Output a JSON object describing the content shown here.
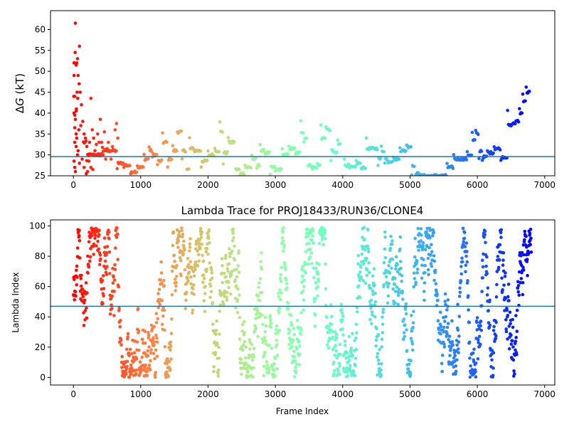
{
  "chart_data": [
    {
      "type": "scatter",
      "title": "",
      "xlabel": "",
      "ylabel": "ΔG (kT)",
      "ylabel_prefix": "Δ",
      "ylabel_var": "G",
      "ylabel_unit": " (kT)",
      "xlim": [
        -340,
        7150
      ],
      "ylim": [
        25,
        64.5
      ],
      "xticks": [
        0,
        1000,
        2000,
        3000,
        4000,
        5000,
        6000,
        7000
      ],
      "yticks": [
        25,
        30,
        35,
        40,
        45,
        50,
        55,
        60
      ],
      "hline": 29.6,
      "hline_color": "#1f77b4",
      "colormap": "rainbow",
      "trace_points": [
        [
          150,
          33
        ],
        [
          250,
          30
        ],
        [
          350,
          30
        ],
        [
          500,
          31
        ],
        [
          600,
          31
        ],
        [
          700,
          28
        ],
        [
          800,
          27.5
        ],
        [
          900,
          26
        ],
        [
          1000,
          27
        ],
        [
          1100,
          29
        ],
        [
          1150,
          31
        ],
        [
          1200,
          30
        ],
        [
          1300,
          28.5
        ],
        [
          1350,
          33
        ],
        [
          1450,
          29
        ],
        [
          1500,
          31
        ],
        [
          1580,
          35.5
        ],
        [
          1650,
          31
        ],
        [
          1700,
          26.5
        ],
        [
          1750,
          31.5
        ],
        [
          1850,
          31
        ],
        [
          1950,
          28.5
        ],
        [
          2050,
          30
        ],
        [
          2150,
          31
        ],
        [
          2200,
          35.5
        ],
        [
          2250,
          30.5
        ],
        [
          2350,
          33
        ],
        [
          2450,
          26.5
        ],
        [
          2500,
          25.5
        ],
        [
          2600,
          27
        ],
        [
          2700,
          29
        ],
        [
          2750,
          27.5
        ],
        [
          2800,
          31
        ],
        [
          2900,
          30.5
        ],
        [
          2950,
          27
        ],
        [
          3050,
          26.5
        ],
        [
          3150,
          30
        ],
        [
          3250,
          31.5
        ],
        [
          3350,
          30.5
        ],
        [
          3400,
          35.5
        ],
        [
          3450,
          34
        ],
        [
          3500,
          27.5
        ],
        [
          3600,
          27
        ],
        [
          3650,
          27.5
        ],
        [
          3700,
          34
        ],
        [
          3800,
          36
        ],
        [
          3850,
          31
        ],
        [
          3900,
          30.5
        ],
        [
          3950,
          32.5
        ],
        [
          4000,
          25
        ],
        [
          4050,
          27.5
        ],
        [
          4150,
          27
        ],
        [
          4250,
          28
        ],
        [
          4300,
          27
        ],
        [
          4400,
          31.5
        ],
        [
          4500,
          31.5
        ],
        [
          4550,
          29
        ],
        [
          4600,
          31
        ],
        [
          4650,
          29
        ],
        [
          4700,
          28.5
        ],
        [
          4800,
          29
        ],
        [
          4900,
          31
        ],
        [
          5000,
          32
        ],
        [
          5050,
          27.5
        ],
        [
          5100,
          25.5
        ],
        [
          5200,
          25
        ],
        [
          5300,
          25
        ],
        [
          5400,
          25
        ],
        [
          5500,
          25
        ],
        [
          5600,
          27
        ],
        [
          5700,
          29
        ],
        [
          5800,
          29
        ],
        [
          5900,
          30
        ],
        [
          5950,
          33.5
        ],
        [
          6000,
          35
        ],
        [
          6050,
          31
        ],
        [
          6100,
          29.5
        ],
        [
          6200,
          30.5
        ],
        [
          6300,
          31.5
        ],
        [
          6400,
          29.5
        ],
        [
          6500,
          37
        ],
        [
          6550,
          37.5
        ],
        [
          6600,
          38
        ],
        [
          6650,
          40
        ],
        [
          6700,
          43
        ],
        [
          6750,
          45
        ],
        [
          6780,
          45
        ]
      ],
      "early_points": [
        [
          30,
          61.5
        ],
        [
          25,
          54.5
        ],
        [
          15,
          52
        ],
        [
          10,
          52
        ],
        [
          50,
          52
        ],
        [
          60,
          53
        ],
        [
          40,
          51.5
        ],
        [
          10,
          49
        ],
        [
          20,
          44
        ],
        [
          5,
          44
        ],
        [
          40,
          40.5
        ],
        [
          10,
          40
        ],
        [
          20,
          39.5
        ],
        [
          45,
          41
        ],
        [
          55,
          45
        ],
        [
          65,
          43.5
        ],
        [
          70,
          49
        ],
        [
          85,
          47
        ],
        [
          90,
          56
        ],
        [
          100,
          45
        ],
        [
          120,
          42
        ],
        [
          30,
          38.5
        ],
        [
          20,
          36.5
        ],
        [
          40,
          35
        ],
        [
          50,
          34
        ],
        [
          80,
          36
        ],
        [
          110,
          37
        ],
        [
          140,
          38
        ],
        [
          160,
          35
        ],
        [
          180,
          34
        ],
        [
          200,
          32
        ],
        [
          220,
          30
        ],
        [
          240,
          33
        ],
        [
          260,
          43.5
        ],
        [
          280,
          36
        ],
        [
          300,
          34
        ],
        [
          320,
          31
        ],
        [
          340,
          32.5
        ],
        [
          360,
          35
        ],
        [
          380,
          33
        ],
        [
          400,
          38.5
        ],
        [
          420,
          33
        ],
        [
          440,
          30
        ],
        [
          460,
          35.5
        ],
        [
          480,
          29
        ],
        [
          500,
          31.5
        ],
        [
          520,
          33
        ],
        [
          540,
          31
        ],
        [
          560,
          29
        ],
        [
          580,
          32
        ],
        [
          600,
          31
        ],
        [
          620,
          36
        ],
        [
          640,
          37.5
        ],
        [
          660,
          34
        ],
        [
          20,
          33
        ],
        [
          40,
          32
        ],
        [
          60,
          30
        ],
        [
          10,
          28.5
        ],
        [
          20,
          27
        ],
        [
          30,
          26
        ],
        [
          70,
          31
        ],
        [
          90,
          28
        ],
        [
          130,
          29
        ],
        [
          160,
          27
        ],
        [
          190,
          25.5
        ],
        [
          210,
          26
        ],
        [
          230,
          28.5
        ],
        [
          260,
          27
        ],
        [
          290,
          26.5
        ]
      ]
    },
    {
      "type": "scatter",
      "title": "Lambda Trace for PROJ18433/RUN36/CLONE4",
      "xlabel": "Frame Index",
      "ylabel": "Lambda Index",
      "xlim": [
        -340,
        7150
      ],
      "ylim": [
        -5,
        104
      ],
      "xticks": [
        0,
        1000,
        2000,
        3000,
        4000,
        5000,
        6000,
        7000
      ],
      "yticks": [
        0,
        20,
        40,
        60,
        80,
        100
      ],
      "hline": 47,
      "hline_color": "#1f77b4",
      "colormap": "rainbow",
      "frame_count": 6800,
      "value_range": [
        0,
        99
      ]
    }
  ]
}
